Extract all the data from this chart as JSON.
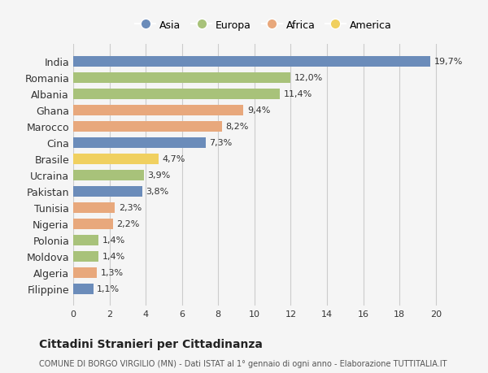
{
  "categories": [
    "India",
    "Romania",
    "Albania",
    "Ghana",
    "Marocco",
    "Cina",
    "Brasile",
    "Ucraina",
    "Pakistan",
    "Tunisia",
    "Nigeria",
    "Polonia",
    "Moldova",
    "Algeria",
    "Filippine"
  ],
  "values": [
    19.7,
    12.0,
    11.4,
    9.4,
    8.2,
    7.3,
    4.7,
    3.9,
    3.8,
    2.3,
    2.2,
    1.4,
    1.4,
    1.3,
    1.1
  ],
  "labels": [
    "19,7%",
    "12,0%",
    "11,4%",
    "9,4%",
    "8,2%",
    "7,3%",
    "4,7%",
    "3,9%",
    "3,8%",
    "2,3%",
    "2,2%",
    "1,4%",
    "1,4%",
    "1,3%",
    "1,1%"
  ],
  "continents": [
    "Asia",
    "Europa",
    "Europa",
    "Africa",
    "Africa",
    "Asia",
    "America",
    "Europa",
    "Asia",
    "Africa",
    "Africa",
    "Europa",
    "Europa",
    "Africa",
    "Asia"
  ],
  "colors": {
    "Asia": "#6b8cba",
    "Europa": "#a8c27a",
    "Africa": "#e8a87c",
    "America": "#f0d060"
  },
  "title": "Cittadini Stranieri per Cittadinanza",
  "subtitle": "COMUNE DI BORGO VIRGILIO (MN) - Dati ISTAT al 1° gennaio di ogni anno - Elaborazione TUTTITALIA.IT",
  "xlim": [
    0,
    21
  ],
  "xticks": [
    0,
    2,
    4,
    6,
    8,
    10,
    12,
    14,
    16,
    18,
    20
  ],
  "background_color": "#f5f5f5",
  "bar_height": 0.65,
  "grid_color": "#cccccc",
  "legend_order": [
    "Asia",
    "Europa",
    "Africa",
    "America"
  ]
}
